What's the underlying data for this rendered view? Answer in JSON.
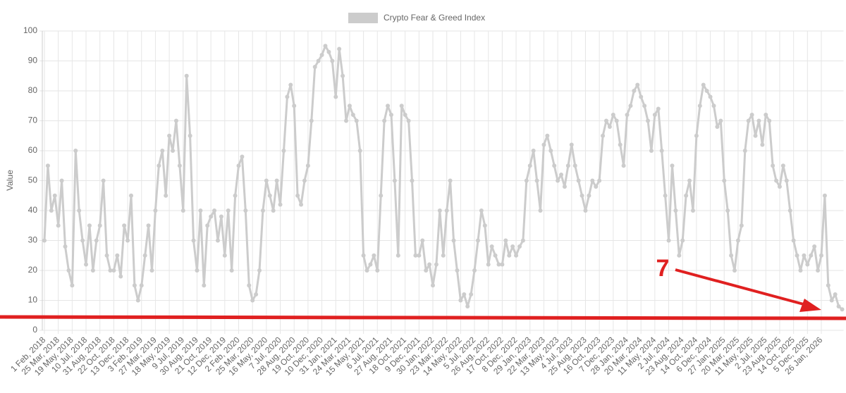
{
  "chart_data": {
    "type": "line",
    "legend": "Crypto Fear & Greed Index",
    "y_label": "Value",
    "annotation": "7",
    "color": "#cccccc",
    "grid": true,
    "ylim": [
      0,
      100
    ],
    "yticks": [
      0,
      10,
      20,
      30,
      40,
      50,
      60,
      70,
      80,
      90,
      100
    ],
    "categories": [
      "1 Feb, 2018",
      null,
      null,
      null,
      "25 Mar, 2018",
      null,
      null,
      null,
      "19 May, 2018",
      null,
      null,
      null,
      "10 Jul, 2018",
      null,
      null,
      null,
      "31 Aug, 2018",
      null,
      null,
      null,
      "22 Oct, 2018",
      null,
      null,
      null,
      "13 Dec, 2018",
      null,
      null,
      null,
      "3 Feb, 2019",
      null,
      null,
      null,
      "27 Mar, 2019",
      null,
      null,
      null,
      "18 May, 2019",
      null,
      null,
      null,
      "9 Jul, 2019",
      null,
      null,
      null,
      "30 Aug, 2019",
      null,
      null,
      null,
      "21 Oct, 2019",
      null,
      null,
      null,
      "12 Dec, 2019",
      null,
      null,
      null,
      "2 Feb, 2020",
      null,
      null,
      null,
      "25 Mar, 2020",
      null,
      null,
      null,
      "16 May, 2020",
      null,
      null,
      null,
      "7 Jul, 2020",
      null,
      null,
      null,
      "28 Aug, 2020",
      null,
      null,
      null,
      "19 Oct, 2020",
      null,
      null,
      null,
      "10 Dec, 2020",
      null,
      null,
      null,
      "31 Jan, 2021",
      null,
      null,
      null,
      "24 Mar, 2021",
      null,
      null,
      null,
      "15 May, 2021",
      null,
      null,
      null,
      "6 Jul, 2021",
      null,
      null,
      null,
      "27 Aug, 2021",
      null,
      null,
      null,
      "18 Oct, 2021",
      null,
      null,
      null,
      "9 Dec, 2021",
      null,
      null,
      null,
      "30 Jan, 2022",
      null,
      null,
      null,
      "23 Mar, 2022",
      null,
      null,
      null,
      "14 May, 2022",
      null,
      null,
      null,
      "5 Jul, 2022",
      null,
      null,
      null,
      "26 Aug, 2022",
      null,
      null,
      null,
      "17 Oct, 2022",
      null,
      null,
      null,
      "8 Dec, 2022",
      null,
      null,
      null,
      "29 Jan, 2023",
      null,
      null,
      null,
      "22 Mar, 2023",
      null,
      null,
      null,
      "13 May, 2023",
      null,
      null,
      null,
      "4 Jul, 2023",
      null,
      null,
      null,
      "25 Aug, 2023",
      null,
      null,
      null,
      "16 Oct, 2023",
      null,
      null,
      null,
      "7 Dec, 2023",
      null,
      null,
      null,
      "28 Jan, 2024",
      null,
      null,
      null,
      "20 Mar, 2024",
      null,
      null,
      null,
      "11 May, 2024",
      null,
      null,
      null,
      "2 Jul, 2024",
      null,
      null,
      null,
      "23 Aug, 2024",
      null,
      null,
      null,
      "14 Oct, 2024",
      null,
      null,
      null,
      "6 Dec, 2024",
      null,
      null,
      null,
      "27 Jan, 2025",
      null,
      null,
      null,
      "20 Mar, 2025",
      null,
      null,
      null,
      "11 May, 2025",
      null,
      null,
      null,
      "2 Jul, 2025",
      null,
      null,
      null,
      "23 Aug, 2025",
      null,
      null,
      null,
      "14 Oct, 2025",
      null,
      null,
      null,
      "5 Dec, 2025",
      null,
      null,
      null,
      "26 Jan, 2026",
      null,
      null,
      null,
      null,
      null,
      null
    ],
    "values": [
      30,
      55,
      40,
      45,
      35,
      50,
      28,
      20,
      15,
      60,
      40,
      30,
      22,
      35,
      20,
      30,
      35,
      50,
      25,
      20,
      20,
      25,
      18,
      35,
      30,
      45,
      15,
      10,
      15,
      25,
      35,
      20,
      40,
      55,
      60,
      45,
      65,
      60,
      70,
      55,
      40,
      85,
      65,
      30,
      20,
      40,
      15,
      35,
      38,
      40,
      30,
      38,
      25,
      40,
      20,
      45,
      55,
      58,
      40,
      15,
      10,
      12,
      20,
      40,
      50,
      45,
      40,
      50,
      42,
      60,
      78,
      82,
      75,
      45,
      42,
      50,
      55,
      70,
      88,
      90,
      92,
      95,
      93,
      90,
      78,
      94,
      85,
      70,
      75,
      72,
      70,
      60,
      25,
      20,
      22,
      25,
      20,
      45,
      70,
      75,
      72,
      50,
      25,
      75,
      72,
      70,
      50,
      25,
      25,
      30,
      20,
      22,
      15,
      22,
      40,
      25,
      40,
      50,
      30,
      20,
      10,
      12,
      8,
      12,
      20,
      30,
      40,
      35,
      22,
      28,
      25,
      22,
      22,
      30,
      25,
      28,
      25,
      28,
      30,
      50,
      55,
      60,
      50,
      40,
      62,
      65,
      60,
      55,
      50,
      52,
      48,
      55,
      62,
      55,
      50,
      45,
      40,
      45,
      50,
      48,
      50,
      65,
      70,
      68,
      72,
      70,
      62,
      55,
      72,
      75,
      80,
      82,
      78,
      75,
      70,
      60,
      72,
      74,
      60,
      45,
      30,
      55,
      40,
      25,
      30,
      45,
      50,
      40,
      65,
      75,
      82,
      80,
      78,
      75,
      68,
      70,
      50,
      40,
      25,
      20,
      30,
      35,
      60,
      70,
      72,
      65,
      70,
      62,
      72,
      70,
      55,
      50,
      48,
      55,
      50,
      40,
      30,
      25,
      20,
      25,
      22,
      25,
      28,
      20,
      25,
      45,
      15,
      10,
      12,
      8,
      7
    ]
  }
}
